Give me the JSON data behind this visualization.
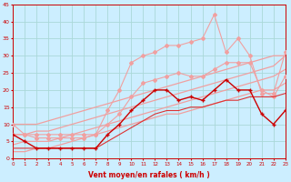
{
  "xlabel": "Vent moyen/en rafales ( km/h )",
  "background_color": "#cceeff",
  "grid_color": "#aad8d8",
  "x": [
    0,
    1,
    2,
    3,
    4,
    5,
    6,
    7,
    8,
    9,
    10,
    11,
    12,
    13,
    14,
    15,
    16,
    17,
    18,
    19,
    20,
    21,
    22,
    23
  ],
  "line_pink_wavy": [
    10,
    7,
    7,
    7,
    7,
    7,
    7,
    7,
    14,
    20,
    28,
    30,
    31,
    33,
    33,
    34,
    35,
    42,
    31,
    35,
    30,
    19,
    19,
    31
  ],
  "line_pink_wavy2": [
    7,
    7,
    6,
    6,
    6,
    6,
    6,
    7,
    10,
    13,
    18,
    22,
    23,
    24,
    25,
    24,
    24,
    26,
    28,
    28,
    28,
    20,
    18,
    24
  ],
  "line_trend1": [
    10,
    10,
    10,
    11,
    12,
    13,
    14,
    15,
    16,
    17,
    18,
    19,
    20,
    21,
    22,
    23,
    24,
    25,
    26,
    27,
    28,
    29,
    30,
    30
  ],
  "line_trend2": [
    7,
    7,
    8,
    8,
    9,
    10,
    11,
    12,
    13,
    14,
    15,
    16,
    17,
    18,
    19,
    20,
    21,
    22,
    23,
    24,
    25,
    26,
    27,
    30
  ],
  "line_trend3": [
    4,
    5,
    5,
    5,
    6,
    7,
    8,
    9,
    10,
    11,
    12,
    13,
    14,
    15,
    16,
    17,
    18,
    19,
    20,
    21,
    22,
    23,
    24,
    26
  ],
  "line_trend4": [
    2,
    2,
    3,
    3,
    4,
    5,
    6,
    7,
    8,
    9,
    10,
    11,
    12,
    13,
    13,
    14,
    15,
    16,
    17,
    18,
    19,
    20,
    20,
    22
  ],
  "line_dark_wavy": [
    7,
    5,
    3,
    3,
    3,
    3,
    3,
    3,
    7,
    10,
    14,
    17,
    20,
    20,
    17,
    18,
    17,
    20,
    23,
    20,
    20,
    13,
    10,
    14
  ],
  "line_dark_smooth": [
    3,
    3,
    3,
    3,
    3,
    3,
    3,
    3,
    5,
    7,
    9,
    11,
    13,
    14,
    14,
    15,
    15,
    16,
    17,
    17,
    18,
    18,
    18,
    19
  ],
  "color_dark_red": "#cc0000",
  "color_medium_red": "#dd3333",
  "color_light_pink": "#f0a0a0",
  "color_pink2": "#e06060",
  "ylim": [
    0,
    45
  ],
  "xlim": [
    0,
    23
  ]
}
